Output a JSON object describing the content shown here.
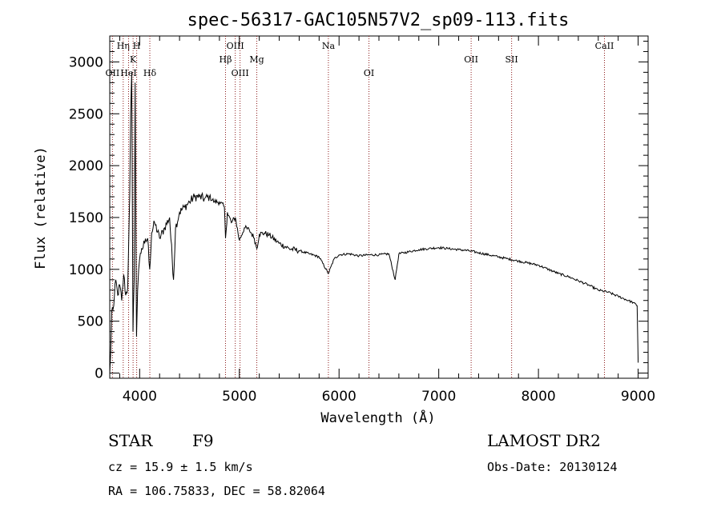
{
  "chart_data": {
    "type": "line",
    "title": "spec-56317-GAC105N57V2_sp09-113.fits",
    "xlabel": "Wavelength (Å)",
    "ylabel": "Flux (relative)",
    "xlim": [
      3700,
      9100
    ],
    "ylim": [
      -50,
      3250
    ],
    "xticks": [
      4000,
      5000,
      6000,
      7000,
      8000,
      9000
    ],
    "yticks": [
      0,
      500,
      1000,
      1500,
      2000,
      2500,
      3000
    ],
    "grid": false,
    "legend": "none",
    "line_color": "#000000",
    "marker_color": "#8b1a1a",
    "series": [
      {
        "x": [
          3700,
          3710,
          3720,
          3740,
          3760,
          3780,
          3800,
          3820,
          3840,
          3860,
          3880,
          3900,
          3910,
          3920,
          3933,
          3945,
          3955,
          3968,
          3980,
          3990,
          4000,
          4020,
          4050,
          4080,
          4101,
          4120,
          4150,
          4200,
          4250,
          4300,
          4340,
          4360,
          4400,
          4450,
          4500,
          4550,
          4600,
          4650,
          4700,
          4750,
          4800,
          4850,
          4861,
          4880,
          4920,
          4960,
          5000,
          5050,
          5100,
          5150,
          5175,
          5200,
          5250,
          5300,
          5400,
          5500,
          5600,
          5700,
          5800,
          5893,
          5950,
          6000,
          6100,
          6200,
          6300,
          6400,
          6500,
          6563,
          6600,
          6700,
          6800,
          6900,
          7000,
          7100,
          7200,
          7300,
          7400,
          7500,
          7600,
          7700,
          7800,
          7900,
          8000,
          8100,
          8200,
          8300,
          8400,
          8500,
          8600,
          8700,
          8800,
          8900,
          8950,
          8990,
          9000
        ],
        "y": [
          0,
          200,
          600,
          650,
          900,
          750,
          850,
          700,
          950,
          750,
          820,
          1700,
          2500,
          2900,
          400,
          900,
          2800,
          350,
          800,
          1000,
          1100,
          1200,
          1250,
          1300,
          1000,
          1350,
          1450,
          1300,
          1400,
          1500,
          900,
          1400,
          1550,
          1600,
          1650,
          1700,
          1700,
          1680,
          1700,
          1650,
          1650,
          1600,
          1300,
          1550,
          1450,
          1500,
          1280,
          1400,
          1380,
          1300,
          1200,
          1340,
          1350,
          1330,
          1250,
          1200,
          1180,
          1150,
          1120,
          960,
          1100,
          1140,
          1150,
          1130,
          1140,
          1140,
          1150,
          900,
          1150,
          1170,
          1190,
          1200,
          1210,
          1200,
          1190,
          1180,
          1160,
          1140,
          1120,
          1100,
          1080,
          1060,
          1040,
          1000,
          960,
          930,
          890,
          850,
          800,
          780,
          740,
          700,
          680,
          650,
          100
        ]
      }
    ],
    "line_markers": [
      {
        "x": 3727,
        "label": "OII",
        "row": 3
      },
      {
        "x": 3835,
        "label": "Hη",
        "row": 1
      },
      {
        "x": 3889,
        "label": "HeI",
        "row": 3
      },
      {
        "x": 3934,
        "label": "K",
        "row": 2
      },
      {
        "x": 3970,
        "label": "H",
        "row": 1
      },
      {
        "x": 4102,
        "label": "Hδ",
        "row": 3
      },
      {
        "x": 4861,
        "label": "Hβ",
        "row": 2
      },
      {
        "x": 4959,
        "label": "OIII",
        "row": 1
      },
      {
        "x": 5007,
        "label": "OIII",
        "row": 3
      },
      {
        "x": 5175,
        "label": "Mg",
        "row": 2
      },
      {
        "x": 5893,
        "label": "Na",
        "row": 1
      },
      {
        "x": 6300,
        "label": "OI",
        "row": 3
      },
      {
        "x": 7325,
        "label": "OII",
        "row": 2
      },
      {
        "x": 7731,
        "label": "SII",
        "row": 2
      },
      {
        "x": 8662,
        "label": "CaII",
        "row": 1
      }
    ]
  },
  "info": {
    "class": "STAR",
    "subclass": "F9",
    "survey": "LAMOST DR2",
    "cz": "cz = 15.9 ± 1.5 km/s",
    "obs_date": "Obs-Date: 20130124",
    "coords": "RA = 106.75833, DEC =  58.82064"
  }
}
